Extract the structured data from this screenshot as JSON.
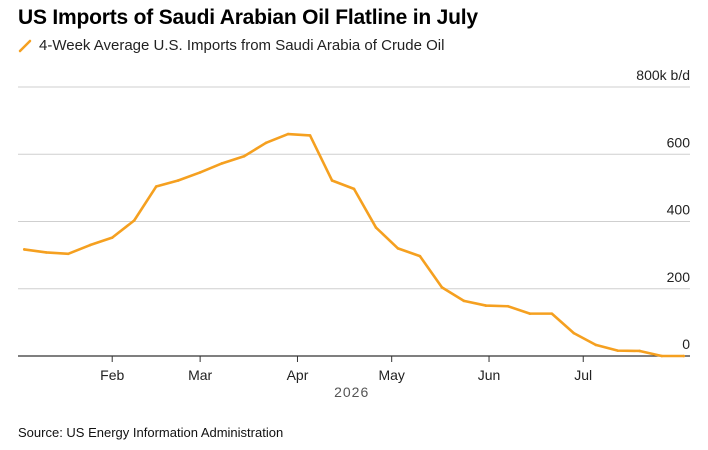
{
  "title": "US Imports of Saudi Arabian Oil Flatline in July",
  "source": "Source: US Energy Information Administration",
  "colors": {
    "series": "#f5a020",
    "grid": "#cfcfcf",
    "axis": "#333333"
  },
  "chart_data": {
    "type": "line",
    "title": "US Imports of Saudi Arabian Oil Flatline in July",
    "xlabel": "",
    "ylabel": "",
    "year_label": "2026",
    "ylim": [
      0,
      800
    ],
    "yticks": [
      {
        "value": 0,
        "label": "0"
      },
      {
        "value": 200,
        "label": "200"
      },
      {
        "value": 400,
        "label": "400"
      },
      {
        "value": 600,
        "label": "600"
      },
      {
        "value": 800,
        "label": "800k b/d"
      }
    ],
    "xlim": [
      "2026-01-02",
      "2026-08-04"
    ],
    "xticks": [
      {
        "date": "2026-02-01",
        "label": "Feb"
      },
      {
        "date": "2026-03-01",
        "label": "Mar"
      },
      {
        "date": "2026-04-01",
        "label": "Apr"
      },
      {
        "date": "2026-05-01",
        "label": "May"
      },
      {
        "date": "2026-06-01",
        "label": "Jun"
      },
      {
        "date": "2026-07-01",
        "label": "Jul"
      }
    ],
    "grid": true,
    "legend": "top-left",
    "series": [
      {
        "name": "4-Week Average U.S. Imports from Saudi Arabia of Crude Oil",
        "points": [
          {
            "x": "2026-01-04",
            "y": 317
          },
          {
            "x": "2026-01-11",
            "y": 308
          },
          {
            "x": "2026-01-18",
            "y": 304
          },
          {
            "x": "2026-01-25",
            "y": 330
          },
          {
            "x": "2026-02-01",
            "y": 352
          },
          {
            "x": "2026-02-08",
            "y": 403
          },
          {
            "x": "2026-02-15",
            "y": 504
          },
          {
            "x": "2026-02-22",
            "y": 522
          },
          {
            "x": "2026-03-01",
            "y": 546
          },
          {
            "x": "2026-03-08",
            "y": 573
          },
          {
            "x": "2026-03-15",
            "y": 594
          },
          {
            "x": "2026-03-22",
            "y": 634
          },
          {
            "x": "2026-03-29",
            "y": 660
          },
          {
            "x": "2026-04-05",
            "y": 656
          },
          {
            "x": "2026-04-12",
            "y": 522
          },
          {
            "x": "2026-04-19",
            "y": 497
          },
          {
            "x": "2026-04-26",
            "y": 382
          },
          {
            "x": "2026-05-03",
            "y": 320
          },
          {
            "x": "2026-05-10",
            "y": 297
          },
          {
            "x": "2026-05-17",
            "y": 204
          },
          {
            "x": "2026-05-24",
            "y": 164
          },
          {
            "x": "2026-05-31",
            "y": 150
          },
          {
            "x": "2026-06-07",
            "y": 148
          },
          {
            "x": "2026-06-14",
            "y": 126
          },
          {
            "x": "2026-06-21",
            "y": 126
          },
          {
            "x": "2026-06-28",
            "y": 68
          },
          {
            "x": "2026-07-05",
            "y": 33
          },
          {
            "x": "2026-07-12",
            "y": 16
          },
          {
            "x": "2026-07-19",
            "y": 15
          },
          {
            "x": "2026-07-26",
            "y": 0
          },
          {
            "x": "2026-08-02",
            "y": 0
          }
        ]
      }
    ]
  }
}
